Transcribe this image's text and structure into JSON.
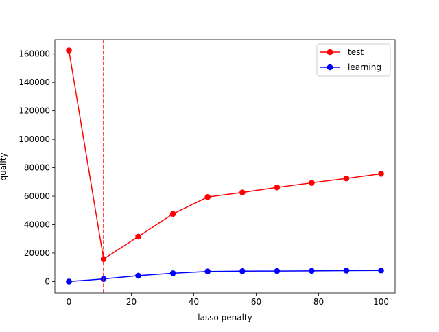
{
  "chart_data": {
    "type": "line",
    "title": "",
    "xlabel": "lasso penalty",
    "ylabel": "quality",
    "xlim": [
      -4.5,
      104.5
    ],
    "ylim": [
      -8000,
      170000
    ],
    "xticks": [
      0,
      20,
      40,
      60,
      80,
      100
    ],
    "xtick_labels": [
      "0",
      "20",
      "40",
      "60",
      "80",
      "100"
    ],
    "yticks": [
      0,
      20000,
      40000,
      60000,
      80000,
      100000,
      120000,
      140000,
      160000
    ],
    "ytick_labels": [
      "0",
      "20000",
      "40000",
      "60000",
      "80000",
      "100000",
      "120000",
      "140000",
      "160000"
    ],
    "grid": false,
    "legend": "top-right",
    "vline": {
      "x": 11.11,
      "color": "#ff0000",
      "style": "dashed"
    },
    "x": [
      0,
      11.11,
      22.22,
      33.33,
      44.44,
      55.56,
      66.67,
      77.78,
      88.89,
      100
    ],
    "series": [
      {
        "name": "test",
        "color": "#ff0000",
        "values": [
          162500,
          15800,
          31600,
          47600,
          59400,
          62600,
          66200,
          69400,
          72500,
          75800
        ]
      },
      {
        "name": "learning",
        "color": "#0000ff",
        "values": [
          0,
          1800,
          4100,
          5800,
          7100,
          7300,
          7400,
          7500,
          7700,
          7800
        ]
      }
    ]
  }
}
